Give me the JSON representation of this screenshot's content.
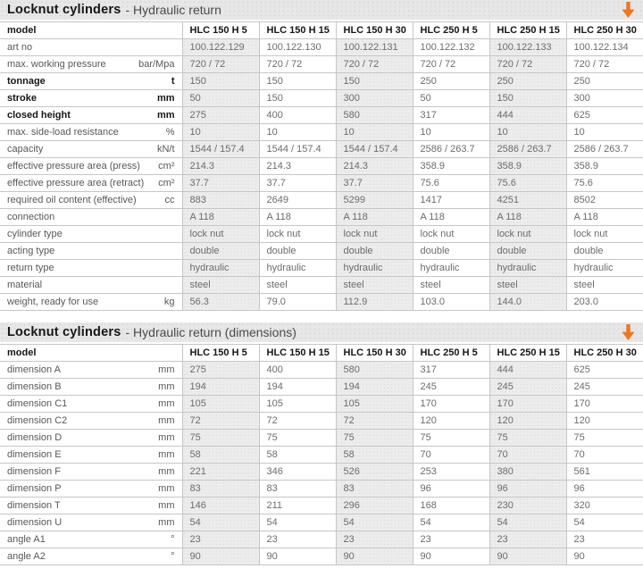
{
  "accent_color": "#ee7623",
  "icons": {
    "table_arrow": "down-arrow"
  },
  "tables": [
    {
      "title_bold": "Locknut cylinders",
      "title_rest": "- Hydraulic return",
      "model_label": "model",
      "columns": [
        "HLC 150 H 5",
        "HLC 150 H 15",
        "HLC 150 H 30",
        "HLC 250 H 5",
        "HLC 250 H 15",
        "HLC 250 H 30"
      ],
      "rows": [
        {
          "label": "art no",
          "unit": "",
          "bold": false,
          "values": [
            "100.122.129",
            "100.122.130",
            "100.122.131",
            "100.122.132",
            "100.122.133",
            "100.122.134"
          ]
        },
        {
          "label": "max. working pressure",
          "unit": "bar/Mpa",
          "bold": false,
          "values": [
            "720 / 72",
            "720 / 72",
            "720 / 72",
            "720 / 72",
            "720 / 72",
            "720 / 72"
          ]
        },
        {
          "label": "tonnage",
          "unit": "t",
          "bold": true,
          "values": [
            "150",
            "150",
            "150",
            "250",
            "250",
            "250"
          ]
        },
        {
          "label": "stroke",
          "unit": "mm",
          "bold": true,
          "values": [
            "50",
            "150",
            "300",
            "50",
            "150",
            "300"
          ]
        },
        {
          "label": "closed height",
          "unit": "mm",
          "bold": true,
          "values": [
            "275",
            "400",
            "580",
            "317",
            "444",
            "625"
          ]
        },
        {
          "label": "max. side-load resistance",
          "unit": "%",
          "bold": false,
          "values": [
            "10",
            "10",
            "10",
            "10",
            "10",
            "10"
          ]
        },
        {
          "label": "capacity",
          "unit": "kN/t",
          "bold": false,
          "values": [
            "1544 / 157.4",
            "1544 / 157.4",
            "1544 / 157.4",
            "2586 / 263.7",
            "2586 / 263.7",
            "2586 / 263.7"
          ]
        },
        {
          "label": "effective pressure area (press)",
          "unit": "cm²",
          "bold": false,
          "values": [
            "214.3",
            "214.3",
            "214.3",
            "358.9",
            "358.9",
            "358.9"
          ]
        },
        {
          "label": "effective pressure area (retract)",
          "unit": "cm²",
          "bold": false,
          "values": [
            "37.7",
            "37.7",
            "37.7",
            "75.6",
            "75.6",
            "75.6"
          ]
        },
        {
          "label": "required oil content (effective)",
          "unit": "cc",
          "bold": false,
          "values": [
            "883",
            "2649",
            "5299",
            "1417",
            "4251",
            "8502"
          ]
        },
        {
          "label": "connection",
          "unit": "",
          "bold": false,
          "values": [
            "A 118",
            "A 118",
            "A 118",
            "A 118",
            "A 118",
            "A 118"
          ]
        },
        {
          "label": "cylinder type",
          "unit": "",
          "bold": false,
          "values": [
            "lock nut",
            "lock nut",
            "lock nut",
            "lock nut",
            "lock nut",
            "lock nut"
          ]
        },
        {
          "label": "acting type",
          "unit": "",
          "bold": false,
          "values": [
            "double",
            "double",
            "double",
            "double",
            "double",
            "double"
          ]
        },
        {
          "label": "return type",
          "unit": "",
          "bold": false,
          "values": [
            "hydraulic",
            "hydraulic",
            "hydraulic",
            "hydraulic",
            "hydraulic",
            "hydraulic"
          ]
        },
        {
          "label": "material",
          "unit": "",
          "bold": false,
          "values": [
            "steel",
            "steel",
            "steel",
            "steel",
            "steel",
            "steel"
          ]
        },
        {
          "label": "weight, ready for use",
          "unit": "kg",
          "bold": false,
          "values": [
            "56.3",
            "79.0",
            "112.9",
            "103.0",
            "144.0",
            "203.0"
          ]
        }
      ]
    },
    {
      "title_bold": "Locknut cylinders",
      "title_rest": "- Hydraulic return (dimensions)",
      "model_label": "model",
      "columns": [
        "HLC 150 H 5",
        "HLC 150 H 15",
        "HLC 150 H 30",
        "HLC 250 H 5",
        "HLC 250 H 15",
        "HLC 250 H 30"
      ],
      "rows": [
        {
          "label": "dimension A",
          "unit": "mm",
          "bold": false,
          "values": [
            "275",
            "400",
            "580",
            "317",
            "444",
            "625"
          ]
        },
        {
          "label": "dimension B",
          "unit": "mm",
          "bold": false,
          "values": [
            "194",
            "194",
            "194",
            "245",
            "245",
            "245"
          ]
        },
        {
          "label": "dimension C1",
          "unit": "mm",
          "bold": false,
          "values": [
            "105",
            "105",
            "105",
            "170",
            "170",
            "170"
          ]
        },
        {
          "label": "dimension C2",
          "unit": "mm",
          "bold": false,
          "values": [
            "72",
            "72",
            "72",
            "120",
            "120",
            "120"
          ]
        },
        {
          "label": "dimension D",
          "unit": "mm",
          "bold": false,
          "values": [
            "75",
            "75",
            "75",
            "75",
            "75",
            "75"
          ]
        },
        {
          "label": "dimension E",
          "unit": "mm",
          "bold": false,
          "values": [
            "58",
            "58",
            "58",
            "70",
            "70",
            "70"
          ]
        },
        {
          "label": "dimension F",
          "unit": "mm",
          "bold": false,
          "values": [
            "221",
            "346",
            "526",
            "253",
            "380",
            "561"
          ]
        },
        {
          "label": "dimension P",
          "unit": "mm",
          "bold": false,
          "values": [
            "83",
            "83",
            "83",
            "96",
            "96",
            "96"
          ]
        },
        {
          "label": "dimension T",
          "unit": "mm",
          "bold": false,
          "values": [
            "146",
            "211",
            "296",
            "168",
            "230",
            "320"
          ]
        },
        {
          "label": "dimension U",
          "unit": "mm",
          "bold": false,
          "values": [
            "54",
            "54",
            "54",
            "54",
            "54",
            "54"
          ]
        },
        {
          "label": "angle A1",
          "unit": "°",
          "bold": false,
          "values": [
            "23",
            "23",
            "23",
            "23",
            "23",
            "23"
          ]
        },
        {
          "label": "angle A2",
          "unit": "°",
          "bold": false,
          "values": [
            "90",
            "90",
            "90",
            "90",
            "90",
            "90"
          ]
        }
      ]
    }
  ]
}
